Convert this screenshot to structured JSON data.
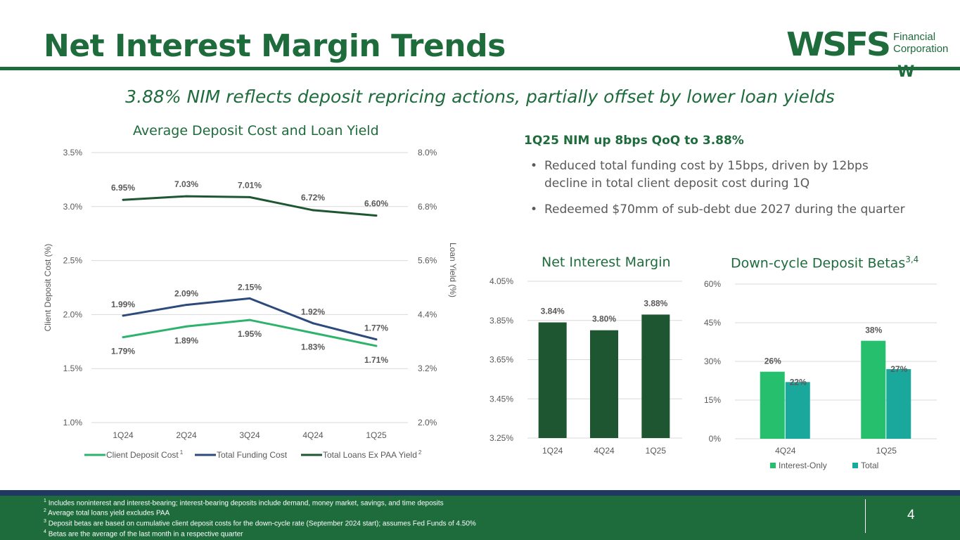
{
  "header": {
    "title": "Net Interest Margin Trends",
    "subtitle": "3.88% NIM reflects deposit repricing actions, partially offset by lower loan yields"
  },
  "logo": {
    "word": "WSFS",
    "line1": "Financial",
    "line2": "Corporation",
    "mark": "W"
  },
  "colors": {
    "brand_green": "#1e6b3c",
    "dark_green": "#1e5631",
    "navy": "#2c4a7c",
    "light_green": "#2db36b",
    "bright_green": "#26bf6e",
    "teal": "#1aa89c",
    "footer_stripe": "#1f3864"
  },
  "highlights": {
    "title": "1Q25 NIM up 8bps QoQ to 3.88%",
    "bullets": [
      "Reduced total funding cost by 15bps, driven by 12bps decline in total client deposit cost during 1Q",
      "Redeemed $70mm of sub-debt due 2027 during the quarter"
    ]
  },
  "chart_data": [
    {
      "type": "line",
      "title": "Average Deposit Cost and Loan Yield",
      "categories": [
        "1Q24",
        "2Q24",
        "3Q24",
        "4Q24",
        "1Q25"
      ],
      "ylabel": "Client Deposit Cost (%)",
      "y2label": "Loan Yield (%)",
      "ylim": [
        1.0,
        3.5
      ],
      "y2lim": [
        2.0,
        8.0
      ],
      "yticks": [
        "1.0%",
        "1.5%",
        "2.0%",
        "2.5%",
        "3.0%",
        "3.5%"
      ],
      "y2ticks": [
        "2.0%",
        "3.2%",
        "4.4%",
        "5.6%",
        "6.8%",
        "8.0%"
      ],
      "series": [
        {
          "name": "Client Deposit Cost",
          "sup": "1",
          "axis": "left",
          "color": "#2db36b",
          "values": [
            1.79,
            1.89,
            1.95,
            1.83,
            1.71
          ],
          "labels": [
            "1.79%",
            "1.89%",
            "1.95%",
            "1.83%",
            "1.71%"
          ],
          "label_pos": "below"
        },
        {
          "name": "Total Funding Cost",
          "sup": "",
          "axis": "left",
          "color": "#2c4a7c",
          "values": [
            1.99,
            2.09,
            2.15,
            1.92,
            1.77
          ],
          "labels": [
            "1.99%",
            "2.09%",
            "2.15%",
            "1.92%",
            "1.77%"
          ],
          "label_pos": "above"
        },
        {
          "name": "Total Loans Ex PAA Yield",
          "sup": "2",
          "axis": "right",
          "color": "#1e5631",
          "values": [
            6.95,
            7.03,
            7.01,
            6.72,
            6.6
          ],
          "labels": [
            "6.95%",
            "7.03%",
            "7.01%",
            "6.72%",
            "6.60%"
          ],
          "label_pos": "above"
        }
      ],
      "legend": "bottom"
    },
    {
      "type": "bar",
      "title": "Net Interest Margin",
      "categories": [
        "1Q24",
        "4Q24",
        "1Q25"
      ],
      "values": [
        3.84,
        3.8,
        3.88
      ],
      "labels": [
        "3.84%",
        "3.80%",
        "3.88%"
      ],
      "ylim": [
        3.25,
        4.05
      ],
      "yticks": [
        "3.25%",
        "3.45%",
        "3.65%",
        "3.85%",
        "4.05%"
      ],
      "color": "#1e5631"
    },
    {
      "type": "bar",
      "title": "Down-cycle Deposit Betas",
      "title_sup": "3,4",
      "categories": [
        "4Q24",
        "1Q25"
      ],
      "ylim": [
        0,
        60
      ],
      "yticks": [
        "0%",
        "15%",
        "30%",
        "45%",
        "60%"
      ],
      "series": [
        {
          "name": "Interest-Only",
          "color": "#26bf6e",
          "values": [
            26,
            38
          ],
          "labels": [
            "26%",
            "38%"
          ]
        },
        {
          "name": "Total",
          "color": "#1aa89c",
          "values": [
            22,
            27
          ],
          "labels": [
            "22%",
            "27%"
          ]
        }
      ],
      "legend": "bottom"
    }
  ],
  "footnotes": [
    {
      "sup": "1",
      "text": "Includes noninterest and interest-bearing; interest-bearing deposits include demand, money market, savings, and time deposits"
    },
    {
      "sup": "2",
      "text": "Average total loans yield excludes PAA"
    },
    {
      "sup": "3",
      "text": "Deposit betas are based on cumulative client deposit costs for the down-cycle rate (September 2024 start); assumes Fed Funds of 4.50%"
    },
    {
      "sup": "4",
      "text": "Betas are the average of the last month in a respective quarter"
    }
  ],
  "page_number": "4"
}
